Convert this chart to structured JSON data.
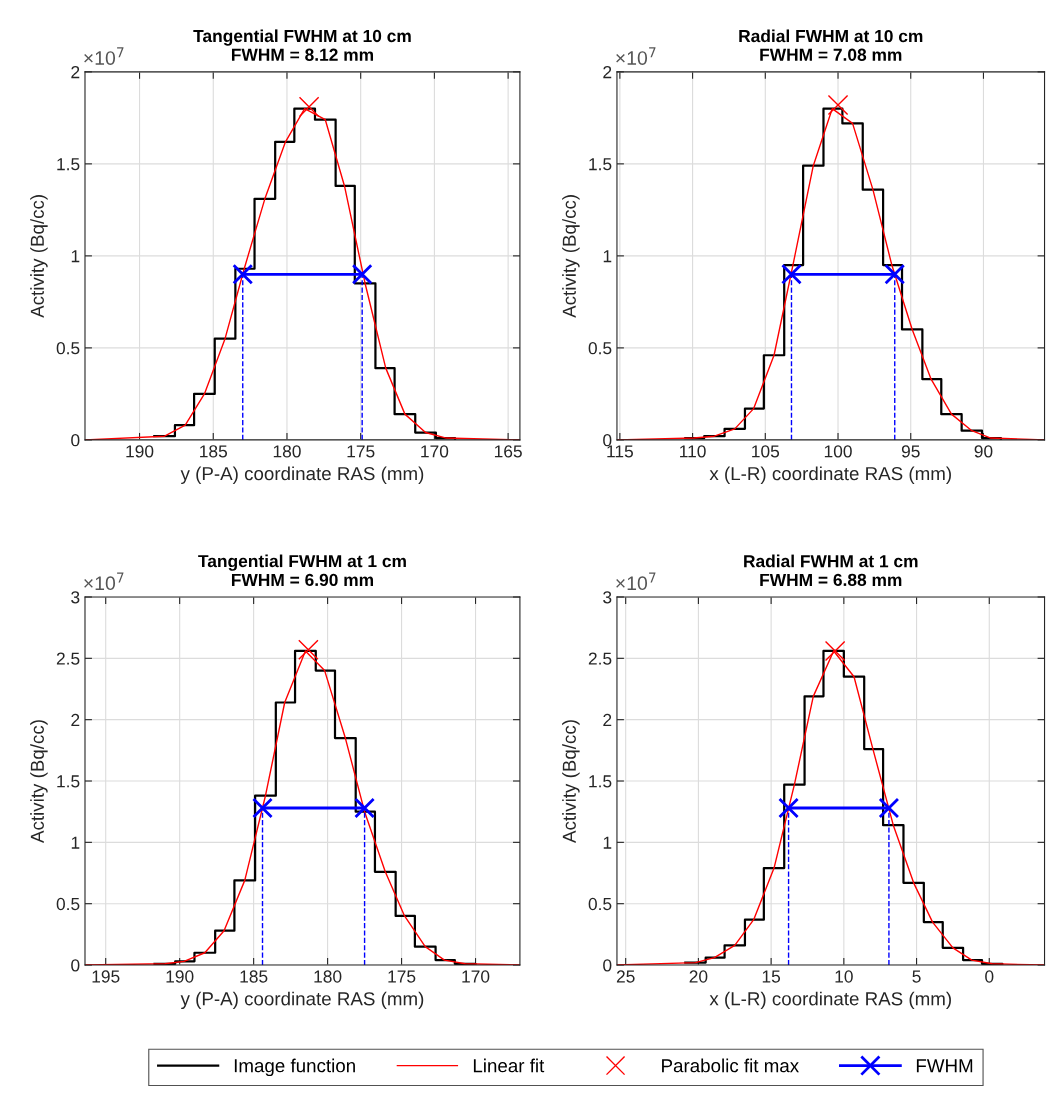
{
  "chart_data": [
    {
      "type": "line",
      "title": "Tangential FWHM at 10 cm\nFWHM = 8.12 mm",
      "xlabel": "y (P-A) coordinate RAS (mm)",
      "ylabel": "Activity (Bq/cc)",
      "annotations": [
        "×10$^{7}$"
      ],
      "xlim": [
        193.7,
        164.2
      ],
      "xticks": [
        190,
        185,
        180,
        175,
        170,
        165
      ],
      "ylim": [
        0,
        2
      ],
      "yticks": [
        0,
        0.5,
        1,
        1.5,
        2
      ],
      "grid": true,
      "legend": "bottom",
      "series": [
        {
          "name": "Image function",
          "type": "step",
          "color": "#000000",
          "x": [
            189.0,
            187.6,
            186.3,
            184.9,
            183.5,
            182.2,
            180.8,
            179.5,
            178.1,
            176.7,
            175.4,
            174.0,
            172.7,
            171.3,
            169.9,
            168.6
          ],
          "values": [
            0.02,
            0.08,
            0.25,
            0.55,
            0.93,
            1.31,
            1.62,
            1.8,
            1.74,
            1.38,
            0.85,
            0.39,
            0.14,
            0.04,
            0.01,
            0
          ]
        },
        {
          "name": "Linear fit",
          "color": "#ff0000",
          "x": [
            193.7,
            188.3,
            186.9,
            185.6,
            184.2,
            182.9,
            181.5,
            180.1,
            178.8,
            177.4,
            176.1,
            174.7,
            173.3,
            172.0,
            170.6,
            169.2,
            164.2
          ],
          "values": [
            0,
            0.02,
            0.08,
            0.25,
            0.55,
            0.93,
            1.31,
            1.62,
            1.8,
            1.74,
            1.38,
            0.85,
            0.39,
            0.14,
            0.04,
            0.01,
            0
          ]
        },
        {
          "name": "Parabolic fit max",
          "type": "scatter",
          "marker": "cross",
          "color": "#ff0000",
          "x": [
            178.5
          ],
          "values": [
            1.81
          ]
        },
        {
          "name": "FWHM",
          "marker": "cross",
          "color": "#0000ff",
          "x": [
            183.0,
            174.9
          ],
          "values": [
            0.9,
            0.9
          ]
        },
        {
          "line_style": "dashed",
          "color": "#0000ff",
          "x": [
            183.0,
            183.0
          ],
          "values": [
            0,
            0.9
          ]
        },
        {
          "line_style": "dashed",
          "color": "#0000ff",
          "x": [
            174.9,
            174.9
          ],
          "values": [
            0,
            0.9
          ]
        }
      ]
    },
    {
      "type": "line",
      "title": "Radial FWHM at 10 cm\nFWHM = 7.08 mm",
      "xlabel": "x (L-R) coordinate RAS (mm)",
      "ylabel": "Activity (Bq/cc)",
      "annotations": [
        "×10$^{7}$"
      ],
      "xlim": [
        115.2,
        85.8
      ],
      "xticks": [
        115,
        110,
        105,
        100,
        95,
        90
      ],
      "ylim": [
        0,
        2
      ],
      "yticks": [
        0,
        0.5,
        1,
        1.5,
        2
      ],
      "grid": true,
      "series": [
        {
          "type": "step",
          "color": "#000000",
          "x": [
            110.5,
            109.2,
            107.8,
            106.4,
            105.1,
            103.7,
            102.4,
            101.0,
            99.7,
            98.3,
            96.9,
            95.6,
            94.2,
            92.9,
            91.5,
            90.1,
            88.8
          ],
          "values": [
            0.01,
            0.02,
            0.06,
            0.17,
            0.46,
            0.95,
            1.49,
            1.8,
            1.72,
            1.36,
            0.95,
            0.6,
            0.33,
            0.14,
            0.05,
            0.01,
            0
          ]
        },
        {
          "color": "#ff0000",
          "x": [
            115.2,
            109.9,
            108.5,
            107.1,
            105.8,
            104.4,
            103.1,
            101.7,
            100.4,
            99.0,
            97.6,
            96.3,
            94.9,
            93.6,
            92.2,
            90.8,
            89.5,
            85.8
          ],
          "values": [
            0,
            0.01,
            0.02,
            0.06,
            0.17,
            0.46,
            0.95,
            1.49,
            1.8,
            1.72,
            1.36,
            0.95,
            0.6,
            0.33,
            0.14,
            0.05,
            0.01,
            0
          ]
        },
        {
          "type": "scatter",
          "marker": "cross",
          "color": "#ff0000",
          "x": [
            100.0
          ],
          "values": [
            1.82
          ]
        },
        {
          "marker": "cross",
          "color": "#0000ff",
          "x": [
            103.2,
            96.1
          ],
          "values": [
            0.9,
            0.9
          ]
        },
        {
          "line_style": "dashed",
          "color": "#0000ff",
          "x": [
            103.2,
            103.2
          ],
          "values": [
            0,
            0.9
          ]
        },
        {
          "line_style": "dashed",
          "color": "#0000ff",
          "x": [
            96.1,
            96.1
          ],
          "values": [
            0,
            0.9
          ]
        }
      ]
    },
    {
      "type": "line",
      "title": "Tangential FWHM at 1 cm\nFWHM = 6.90 mm",
      "xlabel": "y (P-A) coordinate RAS (mm)",
      "ylabel": "Activity (Bq/cc)",
      "annotations": [
        "×10$^{7}$"
      ],
      "xlim": [
        196.4,
        167.0
      ],
      "xticks": [
        195,
        190,
        185,
        180,
        175,
        170
      ],
      "ylim": [
        0,
        3
      ],
      "yticks": [
        0,
        0.5,
        1,
        1.5,
        2,
        2.5,
        3
      ],
      "grid": true,
      "series": [
        {
          "type": "step",
          "color": "#000000",
          "x": [
            191.7,
            190.3,
            189.0,
            187.6,
            186.3,
            184.9,
            183.5,
            182.2,
            180.8,
            179.5,
            178.1,
            176.8,
            175.4,
            174.1,
            172.7,
            171.4,
            170.0
          ],
          "values": [
            0.01,
            0.03,
            0.1,
            0.28,
            0.69,
            1.38,
            2.14,
            2.56,
            2.4,
            1.85,
            1.25,
            0.76,
            0.4,
            0.15,
            0.04,
            0.01,
            0
          ]
        },
        {
          "color": "#ff0000",
          "x": [
            196.4,
            191.0,
            189.7,
            188.3,
            187.0,
            185.6,
            184.2,
            182.9,
            181.5,
            180.2,
            178.8,
            177.5,
            176.1,
            174.8,
            173.4,
            172.1,
            170.7,
            167.0
          ],
          "values": [
            0,
            0.01,
            0.03,
            0.1,
            0.28,
            0.69,
            1.38,
            2.14,
            2.56,
            2.4,
            1.85,
            1.25,
            0.76,
            0.4,
            0.15,
            0.04,
            0.01,
            0
          ]
        },
        {
          "type": "scatter",
          "marker": "cross",
          "color": "#ff0000",
          "x": [
            181.3
          ],
          "values": [
            2.57
          ]
        },
        {
          "marker": "cross",
          "color": "#0000ff",
          "x": [
            184.4,
            177.5
          ],
          "values": [
            1.28,
            1.28
          ]
        },
        {
          "line_style": "dashed",
          "color": "#0000ff",
          "x": [
            184.4,
            184.4
          ],
          "values": [
            0,
            1.28
          ]
        },
        {
          "line_style": "dashed",
          "color": "#0000ff",
          "x": [
            177.5,
            177.5
          ],
          "values": [
            0,
            1.28
          ]
        }
      ]
    },
    {
      "type": "line",
      "title": "Radial FWHM at 1 cm\nFWHM = 6.88 mm",
      "xlabel": "x (L-R) coordinate RAS (mm)",
      "ylabel": "Activity (Bq/cc)",
      "annotations": [
        "×10$^{7}$"
      ],
      "xlim": [
        25.6,
        -3.8
      ],
      "xticks": [
        25,
        20,
        15,
        10,
        5,
        0
      ],
      "ylim": [
        0,
        3
      ],
      "yticks": [
        0,
        0.5,
        1,
        1.5,
        2,
        2.5,
        3
      ],
      "grid": true,
      "series": [
        {
          "type": "step",
          "color": "#000000",
          "x": [
            20.9,
            19.5,
            18.2,
            16.8,
            15.5,
            14.1,
            12.7,
            11.4,
            10.0,
            8.6,
            7.3,
            5.9,
            4.5,
            3.2,
            1.8,
            0.5,
            -0.9
          ],
          "values": [
            0.02,
            0.06,
            0.16,
            0.37,
            0.79,
            1.47,
            2.19,
            2.56,
            2.35,
            1.76,
            1.14,
            0.67,
            0.35,
            0.14,
            0.04,
            0.01,
            0
          ]
        },
        {
          "color": "#ff0000",
          "x": [
            25.6,
            20.2,
            18.9,
            17.5,
            16.2,
            14.8,
            13.4,
            12.1,
            10.7,
            9.3,
            8.0,
            6.6,
            5.2,
            3.9,
            2.5,
            1.2,
            -0.2,
            -3.8
          ],
          "values": [
            0,
            0.02,
            0.06,
            0.16,
            0.37,
            0.79,
            1.47,
            2.19,
            2.56,
            2.35,
            1.76,
            1.14,
            0.67,
            0.35,
            0.14,
            0.04,
            0.01,
            0
          ]
        },
        {
          "type": "scatter",
          "marker": "cross",
          "color": "#ff0000",
          "x": [
            10.6
          ],
          "values": [
            2.56
          ]
        },
        {
          "marker": "cross",
          "color": "#0000ff",
          "x": [
            13.8,
            6.9
          ],
          "values": [
            1.28,
            1.28
          ]
        },
        {
          "line_style": "dashed",
          "color": "#0000ff",
          "x": [
            13.8,
            13.8
          ],
          "values": [
            0,
            1.28
          ]
        },
        {
          "line_style": "dashed",
          "color": "#0000ff",
          "x": [
            6.9,
            6.9
          ],
          "values": [
            0,
            1.28
          ]
        }
      ]
    }
  ]
}
